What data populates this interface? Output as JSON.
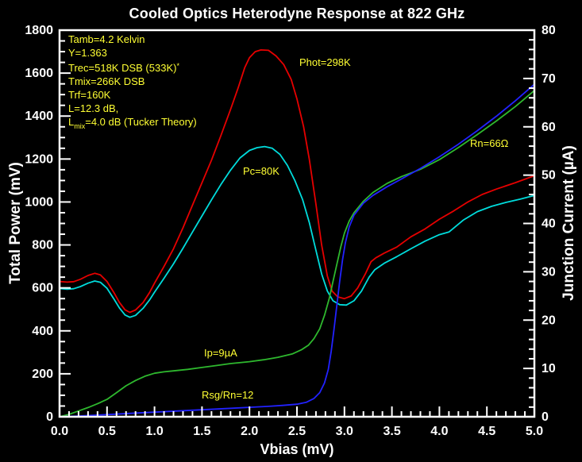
{
  "chart_data": {
    "type": "line",
    "title": "Cooled Optics Heterodyne Response at 822 GHz",
    "xlabel": "Vbias (mV)",
    "ylabel_left": "Total Power (mV)",
    "ylabel_right": "Junction Current (µA)",
    "background": "#000000",
    "frame_color": "#ffffff",
    "grid": false,
    "x_axis": {
      "min": 0,
      "max": 5,
      "major": 0.5,
      "minor": 0.1,
      "decimals": 1
    },
    "y_left_axis": {
      "min": 0,
      "max": 1800,
      "major": 200,
      "minor": 50,
      "decimals": 0
    },
    "y_right_axis": {
      "min": 0,
      "max": 80,
      "major": 10,
      "minor": 2,
      "decimals": 0
    },
    "series": [
      {
        "id": "phot",
        "name": "Phot=298K (hot load total power)",
        "axis": "left",
        "color": "#e60000",
        "points": [
          [
            0,
            630
          ],
          [
            0.08,
            627
          ],
          [
            0.15,
            629
          ],
          [
            0.22,
            640
          ],
          [
            0.3,
            658
          ],
          [
            0.37,
            668
          ],
          [
            0.43,
            661
          ],
          [
            0.5,
            630
          ],
          [
            0.57,
            580
          ],
          [
            0.63,
            533
          ],
          [
            0.69,
            498
          ],
          [
            0.74,
            486
          ],
          [
            0.8,
            497
          ],
          [
            0.88,
            532
          ],
          [
            0.95,
            580
          ],
          [
            1.0,
            622
          ],
          [
            1.1,
            700
          ],
          [
            1.2,
            782
          ],
          [
            1.3,
            880
          ],
          [
            1.4,
            985
          ],
          [
            1.5,
            1090
          ],
          [
            1.6,
            1195
          ],
          [
            1.7,
            1310
          ],
          [
            1.8,
            1430
          ],
          [
            1.88,
            1530
          ],
          [
            1.95,
            1625
          ],
          [
            2.0,
            1672
          ],
          [
            2.06,
            1700
          ],
          [
            2.12,
            1708
          ],
          [
            2.2,
            1706
          ],
          [
            2.28,
            1680
          ],
          [
            2.36,
            1640
          ],
          [
            2.44,
            1570
          ],
          [
            2.5,
            1480
          ],
          [
            2.57,
            1350
          ],
          [
            2.63,
            1200
          ],
          [
            2.7,
            990
          ],
          [
            2.76,
            800
          ],
          [
            2.82,
            655
          ],
          [
            2.87,
            585
          ],
          [
            2.93,
            558
          ],
          [
            3.0,
            550
          ],
          [
            3.07,
            562
          ],
          [
            3.14,
            600
          ],
          [
            3.22,
            665
          ],
          [
            3.28,
            722
          ],
          [
            3.33,
            740
          ],
          [
            3.42,
            762
          ],
          [
            3.55,
            790
          ],
          [
            3.7,
            838
          ],
          [
            3.85,
            875
          ],
          [
            4.0,
            920
          ],
          [
            4.15,
            958
          ],
          [
            4.3,
            1000
          ],
          [
            4.45,
            1035
          ],
          [
            4.6,
            1060
          ],
          [
            4.8,
            1090
          ],
          [
            5.0,
            1122
          ]
        ]
      },
      {
        "id": "pc",
        "name": "Pc=80K (cold load total power)",
        "axis": "left",
        "color": "#00dcdc",
        "points": [
          [
            0,
            597
          ],
          [
            0.08,
            594
          ],
          [
            0.15,
            596
          ],
          [
            0.22,
            606
          ],
          [
            0.3,
            622
          ],
          [
            0.37,
            632
          ],
          [
            0.43,
            626
          ],
          [
            0.5,
            598
          ],
          [
            0.57,
            550
          ],
          [
            0.63,
            507
          ],
          [
            0.69,
            474
          ],
          [
            0.74,
            463
          ],
          [
            0.8,
            472
          ],
          [
            0.88,
            505
          ],
          [
            0.95,
            545
          ],
          [
            1.0,
            580
          ],
          [
            1.1,
            645
          ],
          [
            1.2,
            712
          ],
          [
            1.3,
            785
          ],
          [
            1.4,
            860
          ],
          [
            1.5,
            935
          ],
          [
            1.6,
            1010
          ],
          [
            1.7,
            1082
          ],
          [
            1.8,
            1148
          ],
          [
            1.9,
            1205
          ],
          [
            2.0,
            1240
          ],
          [
            2.08,
            1253
          ],
          [
            2.16,
            1258
          ],
          [
            2.24,
            1250
          ],
          [
            2.32,
            1222
          ],
          [
            2.4,
            1170
          ],
          [
            2.48,
            1098
          ],
          [
            2.56,
            1010
          ],
          [
            2.63,
            905
          ],
          [
            2.7,
            775
          ],
          [
            2.76,
            665
          ],
          [
            2.82,
            585
          ],
          [
            2.88,
            540
          ],
          [
            2.95,
            522
          ],
          [
            3.02,
            520
          ],
          [
            3.1,
            540
          ],
          [
            3.18,
            585
          ],
          [
            3.26,
            650
          ],
          [
            3.32,
            685
          ],
          [
            3.42,
            715
          ],
          [
            3.55,
            745
          ],
          [
            3.7,
            782
          ],
          [
            3.85,
            818
          ],
          [
            4.0,
            848
          ],
          [
            4.1,
            860
          ],
          [
            4.25,
            915
          ],
          [
            4.4,
            955
          ],
          [
            4.55,
            980
          ],
          [
            4.7,
            998
          ],
          [
            4.85,
            1013
          ],
          [
            5.0,
            1030
          ]
        ]
      },
      {
        "id": "ip-pumped",
        "name": "Pumped junction current, Ip=9µA",
        "axis": "right",
        "color": "#2eb82e",
        "points": [
          [
            0,
            0
          ],
          [
            0.1,
            0.5
          ],
          [
            0.2,
            1.2
          ],
          [
            0.3,
            1.9
          ],
          [
            0.4,
            2.7
          ],
          [
            0.5,
            3.6
          ],
          [
            0.6,
            5.0
          ],
          [
            0.7,
            6.4
          ],
          [
            0.8,
            7.5
          ],
          [
            0.9,
            8.4
          ],
          [
            1.0,
            9.0
          ],
          [
            1.1,
            9.3
          ],
          [
            1.2,
            9.5
          ],
          [
            1.35,
            9.8
          ],
          [
            1.5,
            10.2
          ],
          [
            1.65,
            10.6
          ],
          [
            1.8,
            11.0
          ],
          [
            2.0,
            11.4
          ],
          [
            2.15,
            11.8
          ],
          [
            2.3,
            12.3
          ],
          [
            2.45,
            13.0
          ],
          [
            2.55,
            13.9
          ],
          [
            2.62,
            14.8
          ],
          [
            2.68,
            16.2
          ],
          [
            2.74,
            18.2
          ],
          [
            2.79,
            21.0
          ],
          [
            2.84,
            24.5
          ],
          [
            2.88,
            28.0
          ],
          [
            2.92,
            31.5
          ],
          [
            2.96,
            35.0
          ],
          [
            3.0,
            38.0
          ],
          [
            3.05,
            40.5
          ],
          [
            3.1,
            42.2
          ],
          [
            3.2,
            44.6
          ],
          [
            3.3,
            46.4
          ],
          [
            3.45,
            48.3
          ],
          [
            3.6,
            49.7
          ],
          [
            3.8,
            51.2
          ],
          [
            4.0,
            53.2
          ],
          [
            4.2,
            55.7
          ],
          [
            4.4,
            58.4
          ],
          [
            4.6,
            61.2
          ],
          [
            4.8,
            64.2
          ],
          [
            5.0,
            67.5
          ]
        ]
      },
      {
        "id": "iv-unpumped",
        "name": "Unpumped I-V, Rsg/Rn=12, Rn=66Ω",
        "axis": "right",
        "color": "#2222ff",
        "points": [
          [
            0,
            0
          ],
          [
            0.25,
            0.2
          ],
          [
            0.5,
            0.45
          ],
          [
            0.75,
            0.7
          ],
          [
            1.0,
            0.95
          ],
          [
            1.25,
            1.2
          ],
          [
            1.5,
            1.45
          ],
          [
            1.75,
            1.7
          ],
          [
            2.0,
            1.95
          ],
          [
            2.2,
            2.15
          ],
          [
            2.35,
            2.35
          ],
          [
            2.5,
            2.6
          ],
          [
            2.6,
            3.0
          ],
          [
            2.68,
            3.8
          ],
          [
            2.74,
            5.0
          ],
          [
            2.79,
            7.0
          ],
          [
            2.83,
            9.8
          ],
          [
            2.86,
            13.5
          ],
          [
            2.89,
            18.0
          ],
          [
            2.92,
            23.0
          ],
          [
            2.95,
            28.0
          ],
          [
            2.98,
            32.5
          ],
          [
            3.01,
            36.0
          ],
          [
            3.05,
            39.3
          ],
          [
            3.1,
            41.7
          ],
          [
            3.2,
            44.2
          ],
          [
            3.3,
            45.8
          ],
          [
            3.45,
            47.6
          ],
          [
            3.6,
            49.2
          ],
          [
            3.8,
            51.4
          ],
          [
            4.0,
            53.8
          ],
          [
            4.2,
            56.4
          ],
          [
            4.4,
            59.2
          ],
          [
            4.6,
            62.2
          ],
          [
            4.8,
            65.4
          ],
          [
            5.0,
            68.8
          ]
        ]
      }
    ]
  },
  "annotations": [
    {
      "text": "Tamb=4.2 Kelvin"
    },
    {
      "text": "Y=1.363"
    },
    {
      "text": "Trec=518K DSB (533K)",
      "sup": "*"
    },
    {
      "text": "Tmix=266K DSB"
    },
    {
      "text": "Trf=160K"
    },
    {
      "text": "L=12.3 dB,"
    },
    {
      "text": "L",
      "sub": "mix",
      "rest": "=4.0 dB (Tucker Theory)"
    }
  ],
  "curve_labels": [
    {
      "text": "Phot=298K"
    },
    {
      "text": "Pc=80K"
    },
    {
      "text": "Rn=66Ω"
    },
    {
      "text": "Ip=9µA"
    },
    {
      "text": "Rsg/Rn=12"
    }
  ],
  "colors": {
    "annotation_yellow": "#ffff33",
    "phot_red": "#e60000",
    "pc_cyan": "#00dcdc",
    "pumped_green": "#2eb82e",
    "unpumped_blue": "#2222ff"
  }
}
